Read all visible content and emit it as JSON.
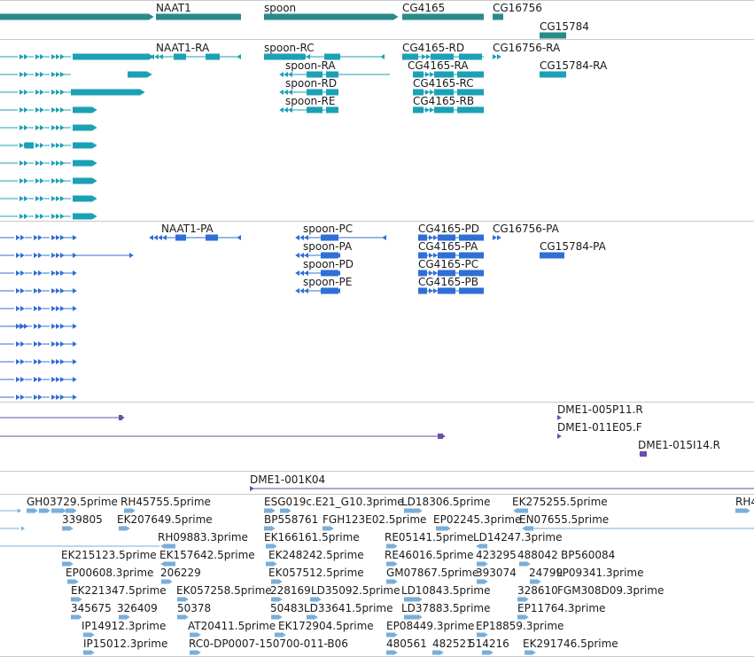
{
  "tracks": {
    "genes": {
      "color": "#2a8a8a",
      "features": [
        {
          "id": "naat1",
          "label": "NAAT1"
        },
        {
          "id": "spoon",
          "label": "spoon"
        },
        {
          "id": "cg4165",
          "label": "CG4165"
        },
        {
          "id": "cg16756",
          "label": "CG16756"
        },
        {
          "id": "cg15784",
          "label": "CG15784"
        }
      ]
    },
    "transcripts": {
      "color": "#1ba1b5",
      "features": [
        {
          "id": "naat1-ra",
          "label": "NAAT1-RA"
        },
        {
          "id": "spoon-rc",
          "label": "spoon-RC"
        },
        {
          "id": "spoon-ra",
          "label": "spoon-RA"
        },
        {
          "id": "spoon-rd",
          "label": "spoon-RD"
        },
        {
          "id": "spoon-re",
          "label": "spoon-RE"
        },
        {
          "id": "cg4165-rd",
          "label": "CG4165-RD"
        },
        {
          "id": "cg4165-ra",
          "label": "CG4165-RA"
        },
        {
          "id": "cg4165-rc",
          "label": "CG4165-RC"
        },
        {
          "id": "cg4165-rb",
          "label": "CG4165-RB"
        },
        {
          "id": "cg16756-ra",
          "label": "CG16756-RA"
        },
        {
          "id": "cg15784-ra",
          "label": "CG15784-RA"
        }
      ]
    },
    "proteins": {
      "color": "#2f6fd6",
      "features": [
        {
          "id": "naat1-pa",
          "label": "NAAT1-PA"
        },
        {
          "id": "spoon-pc",
          "label": "spoon-PC"
        },
        {
          "id": "spoon-pa",
          "label": "spoon-PA"
        },
        {
          "id": "spoon-pd",
          "label": "spoon-PD"
        },
        {
          "id": "spoon-pe",
          "label": "spoon-PE"
        },
        {
          "id": "cg4165-pd",
          "label": "CG4165-PD"
        },
        {
          "id": "cg4165-pa",
          "label": "CG4165-PA"
        },
        {
          "id": "cg4165-pc",
          "label": "CG4165-PC"
        },
        {
          "id": "cg4165-pb",
          "label": "CG4165-PB"
        },
        {
          "id": "cg16756-pa",
          "label": "CG16756-PA"
        },
        {
          "id": "cg15784-pa",
          "label": "CG15784-PA"
        }
      ]
    },
    "clones": {
      "color": "#6a4ea8",
      "features": [
        {
          "id": "dme1-005p11-r",
          "label": "DME1-005P11.R"
        },
        {
          "id": "dme1-011e05-f",
          "label": "DME1-011E05.F"
        },
        {
          "id": "dme1-015i14-r",
          "label": "DME1-015I14.R"
        },
        {
          "id": "dme1-001k04",
          "label": "DME1-001K04"
        }
      ]
    },
    "ests": {
      "color": "#7aaed8",
      "features": [
        {
          "id": "gh03729",
          "label": "GH03729.5prime"
        },
        {
          "id": "rh45755",
          "label": "RH45755.5prime"
        },
        {
          "id": "esg019c",
          "label": "ESG019c.E21_G10.3prime"
        },
        {
          "id": "ld18306",
          "label": "LD18306.5prime"
        },
        {
          "id": "ek275255",
          "label": "EK275255.5prime"
        },
        {
          "id": "rh4-cut",
          "label": "RH4"
        },
        {
          "id": "n339805",
          "label": "339805"
        },
        {
          "id": "ek207649",
          "label": "EK207649.5prime"
        },
        {
          "id": "bp558761",
          "label": "BP558761"
        },
        {
          "id": "fgh123e02",
          "label": "FGH123E02.5prime"
        },
        {
          "id": "ep02245",
          "label": "EP02245.3prime"
        },
        {
          "id": "en07655",
          "label": "EN07655.5prime"
        },
        {
          "id": "rh09883",
          "label": "RH09883.3prime"
        },
        {
          "id": "ek166161",
          "label": "EK166161.5prime"
        },
        {
          "id": "re05141",
          "label": "RE05141.5prime"
        },
        {
          "id": "ld14247",
          "label": "LD14247.3prime"
        },
        {
          "id": "ek215123",
          "label": "EK215123.5prime"
        },
        {
          "id": "ek157642",
          "label": "EK157642.5prime"
        },
        {
          "id": "ek248242",
          "label": "EK248242.5prime"
        },
        {
          "id": "re46016",
          "label": "RE46016.5prime"
        },
        {
          "id": "n423295",
          "label": "423295"
        },
        {
          "id": "n488042",
          "label": "488042"
        },
        {
          "id": "bp560084",
          "label": "BP560084"
        },
        {
          "id": "ep00608",
          "label": "EP00608.3prime"
        },
        {
          "id": "n206229",
          "label": "206229"
        },
        {
          "id": "ek057512",
          "label": "EK057512.5prime"
        },
        {
          "id": "gm07867",
          "label": "GM07867.5prime"
        },
        {
          "id": "n393074",
          "label": "393074"
        },
        {
          "id": "n24799",
          "label": "24799"
        },
        {
          "id": "lp09341",
          "label": "LP09341.3prime"
        },
        {
          "id": "ek221347",
          "label": "EK221347.5prime"
        },
        {
          "id": "ek057258",
          "label": "EK057258.5prime"
        },
        {
          "id": "n228169",
          "label": "228169"
        },
        {
          "id": "ld35092",
          "label": "LD35092.5prime"
        },
        {
          "id": "ld10843",
          "label": "LD10843.5prime"
        },
        {
          "id": "n328610",
          "label": "328610"
        },
        {
          "id": "fgm308d09",
          "label": "FGM308D09.3prime"
        },
        {
          "id": "n345675",
          "label": "345675"
        },
        {
          "id": "n326409",
          "label": "326409"
        },
        {
          "id": "n50378",
          "label": "50378"
        },
        {
          "id": "n50483",
          "label": "50483"
        },
        {
          "id": "ld33641",
          "label": "LD33641.5prime"
        },
        {
          "id": "ld37883",
          "label": "LD37883.5prime"
        },
        {
          "id": "ep11764",
          "label": "EP11764.3prime"
        },
        {
          "id": "ip14912",
          "label": "IP14912.3prime"
        },
        {
          "id": "at20411",
          "label": "AT20411.5prime"
        },
        {
          "id": "ek172904",
          "label": "EK172904.5prime"
        },
        {
          "id": "ep08449",
          "label": "EP08449.3prime"
        },
        {
          "id": "ep18859",
          "label": "EP18859.3prime"
        },
        {
          "id": "ip15012",
          "label": "IP15012.3prime"
        },
        {
          "id": "rc0-dp0007",
          "label": "RC0-DP0007-150700-011-B06"
        },
        {
          "id": "n480561",
          "label": "480561"
        },
        {
          "id": "n482521",
          "label": "482521"
        },
        {
          "id": "n514216",
          "label": "514216"
        },
        {
          "id": "ek291746",
          "label": "EK291746.5prime"
        }
      ]
    }
  }
}
